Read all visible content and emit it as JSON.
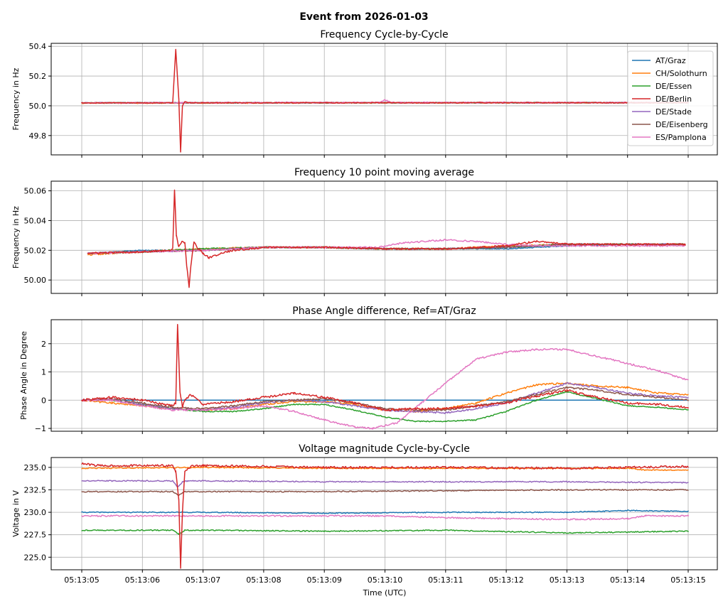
{
  "figure": {
    "title": "Event from 2026-01-03",
    "xlabel": "Time (UTC)",
    "x_tick_labels": [
      "05:13:05",
      "05:13:06",
      "05:13:07",
      "05:13:08",
      "05:13:09",
      "05:13:10",
      "05:13:11",
      "05:13:12",
      "05:13:13",
      "05:13:14",
      "05:13:15"
    ]
  },
  "legend": {
    "placement": "upper-right of first panel",
    "entries": [
      {
        "name": "AT/Graz",
        "color": "#1f77b4"
      },
      {
        "name": "CH/Solothurn",
        "color": "#ff7f0e"
      },
      {
        "name": "DE/Essen",
        "color": "#2ca02c"
      },
      {
        "name": "DE/Berlin",
        "color": "#d62728"
      },
      {
        "name": "DE/Stade",
        "color": "#9467bd"
      },
      {
        "name": "DE/Eisenberg",
        "color": "#8c564b"
      },
      {
        "name": "ES/Pamplona",
        "color": "#e377c2"
      }
    ]
  },
  "chart_data": [
    {
      "type": "line",
      "title": "Frequency Cycle-by-Cycle",
      "xlabel": "",
      "ylabel": "Frequency in Hz",
      "xlim": [
        0,
        10
      ],
      "x_unit": "seconds after 05:13:05",
      "ylim": [
        49.67,
        50.42
      ],
      "y_ticks": [
        49.8,
        50.0,
        50.2,
        50.4
      ],
      "y_tick_labels": [
        "49.8",
        "50.0",
        "50.2",
        "50.4"
      ],
      "grid": true,
      "series": [
        {
          "name": "AT/Graz",
          "color": "#1f77b4",
          "x": [
            0,
            10
          ],
          "y": [
            50.02,
            50.021
          ],
          "noise": 0.002,
          "seed": 11
        },
        {
          "name": "CH/Solothurn",
          "color": "#ff7f0e",
          "x": [
            0,
            10
          ],
          "y": [
            50.018,
            50.021
          ],
          "noise": 0.003,
          "seed": 12
        },
        {
          "name": "DE/Essen",
          "color": "#2ca02c",
          "x": [
            0,
            10
          ],
          "y": [
            50.02,
            50.021
          ],
          "noise": 0.003,
          "seed": 13
        },
        {
          "name": "DE/Stade",
          "color": "#9467bd",
          "x": [
            0,
            10
          ],
          "y": [
            50.02,
            50.021
          ],
          "noise": 0.003,
          "seed": 15
        },
        {
          "name": "DE/Eisenberg",
          "color": "#8c564b",
          "x": [
            0,
            10
          ],
          "y": [
            50.02,
            50.021
          ],
          "noise": 0.003,
          "seed": 16
        },
        {
          "name": "ES/Pamplona",
          "color": "#e377c2",
          "x": [
            0,
            4.9,
            5.0,
            5.1,
            10
          ],
          "y": [
            50.02,
            50.022,
            50.04,
            50.022,
            50.022
          ],
          "noise": 0.004,
          "seed": 17
        },
        {
          "name": "DE/Berlin",
          "color": "#d62728",
          "x": [
            0,
            1.5,
            1.55,
            1.6,
            1.63,
            1.66,
            1.7,
            1.75,
            2.0,
            10
          ],
          "y": [
            50.02,
            50.02,
            50.38,
            50.05,
            49.69,
            50.0,
            50.03,
            50.02,
            50.02,
            50.021
          ],
          "noise": 0.003,
          "seed": 14
        }
      ]
    },
    {
      "type": "line",
      "title": "Frequency 10 point moving average",
      "xlabel": "",
      "ylabel": "Frequency in Hz",
      "xlim": [
        0,
        10
      ],
      "x_unit": "seconds after 05:13:05",
      "ylim": [
        49.991,
        50.0665
      ],
      "y_ticks": [
        50.0,
        50.02,
        50.04,
        50.06
      ],
      "y_tick_labels": [
        "50.00",
        "50.02",
        "50.04",
        "50.06"
      ],
      "grid": true,
      "series": [
        {
          "name": "AT/Graz",
          "color": "#1f77b4",
          "x": [
            0.1,
            1.0,
            2.0,
            3.0,
            4.0,
            5.0,
            6.0,
            7.0,
            8.0,
            9.0,
            9.95
          ],
          "y": [
            50.018,
            50.02,
            50.02,
            50.022,
            50.022,
            50.021,
            50.021,
            50.021,
            50.023,
            50.024,
            50.024
          ],
          "noise": 0.0003,
          "seed": 21
        },
        {
          "name": "CH/Solothurn",
          "color": "#ff7f0e",
          "x": [
            0.1,
            1.0,
            2.0,
            3.0,
            4.0,
            5.0,
            6.0,
            7.0,
            8.0,
            9.0,
            9.95
          ],
          "y": [
            50.017,
            50.019,
            50.021,
            50.022,
            50.022,
            50.021,
            50.021,
            50.023,
            50.024,
            50.024,
            50.024
          ],
          "noise": 0.0005,
          "seed": 22
        },
        {
          "name": "DE/Essen",
          "color": "#2ca02c",
          "x": [
            0.1,
            1.0,
            2.0,
            3.0,
            4.0,
            5.0,
            6.0,
            7.0,
            8.0,
            9.0,
            9.95
          ],
          "y": [
            50.018,
            50.019,
            50.021,
            50.022,
            50.022,
            50.021,
            50.021,
            50.022,
            50.024,
            50.024,
            50.024
          ],
          "noise": 0.0005,
          "seed": 23
        },
        {
          "name": "DE/Stade",
          "color": "#9467bd",
          "x": [
            0.1,
            1.0,
            2.0,
            3.0,
            4.0,
            5.0,
            6.0,
            7.0,
            8.0,
            9.0,
            9.95
          ],
          "y": [
            50.018,
            50.019,
            50.02,
            50.022,
            50.022,
            50.021,
            50.021,
            50.022,
            50.024,
            50.024,
            50.024
          ],
          "noise": 0.0005,
          "seed": 25
        },
        {
          "name": "DE/Eisenberg",
          "color": "#8c564b",
          "x": [
            0.1,
            1.0,
            2.0,
            3.0,
            4.0,
            5.0,
            6.0,
            7.0,
            8.0,
            9.0,
            9.95
          ],
          "y": [
            50.018,
            50.019,
            50.02,
            50.022,
            50.022,
            50.021,
            50.021,
            50.022,
            50.024,
            50.024,
            50.024
          ],
          "noise": 0.0005,
          "seed": 26
        },
        {
          "name": "ES/Pamplona",
          "color": "#e377c2",
          "x": [
            0.1,
            1.0,
            2.0,
            3.0,
            4.0,
            4.9,
            5.3,
            6.0,
            6.5,
            7.0,
            7.5,
            8.0,
            9.0,
            9.95
          ],
          "y": [
            50.018,
            50.019,
            50.02,
            50.022,
            50.022,
            50.022,
            50.025,
            50.027,
            50.026,
            50.024,
            50.023,
            50.023,
            50.023,
            50.023
          ],
          "noise": 0.0005,
          "seed": 27
        },
        {
          "name": "DE/Berlin",
          "color": "#d62728",
          "x": [
            0.1,
            1.0,
            1.45,
            1.5,
            1.53,
            1.56,
            1.6,
            1.65,
            1.7,
            1.73,
            1.77,
            1.8,
            1.85,
            1.9,
            2.0,
            2.1,
            2.3,
            2.5,
            2.8,
            3.0,
            4.0,
            5.0,
            6.0,
            7.0,
            7.5,
            8.0,
            9.0,
            9.95
          ],
          "y": [
            50.018,
            50.019,
            50.02,
            50.021,
            50.061,
            50.03,
            50.022,
            50.026,
            50.025,
            50.01,
            49.995,
            50.01,
            50.026,
            50.022,
            50.018,
            50.015,
            50.018,
            50.02,
            50.021,
            50.022,
            50.022,
            50.021,
            50.021,
            50.023,
            50.026,
            50.024,
            50.024,
            50.024
          ],
          "noise": 0.0006,
          "seed": 24
        }
      ]
    },
    {
      "type": "line",
      "title": "Phase Angle difference, Ref=AT/Graz",
      "xlabel": "",
      "ylabel": "Phase Angle in Degree",
      "xlim": [
        0,
        10
      ],
      "x_unit": "seconds after 05:13:05",
      "ylim": [
        -1.1,
        2.85
      ],
      "y_ticks": [
        -1,
        0,
        1,
        2
      ],
      "y_tick_labels": [
        "−1",
        "0",
        "1",
        "2"
      ],
      "grid": true,
      "series": [
        {
          "name": "AT/Graz",
          "color": "#1f77b4",
          "x": [
            0,
            10
          ],
          "y": [
            0,
            0
          ],
          "noise": 0,
          "seed": 31
        },
        {
          "name": "CH/Solothurn",
          "color": "#ff7f0e",
          "x": [
            0,
            0.5,
            1,
            1.5,
            2,
            2.5,
            3,
            3.5,
            4,
            4.5,
            5,
            5.5,
            6,
            6.5,
            7,
            7.5,
            8,
            8.5,
            9,
            9.5,
            10
          ],
          "y": [
            0,
            -0.1,
            -0.2,
            -0.3,
            -0.35,
            -0.3,
            -0.15,
            -0.05,
            -0.05,
            -0.15,
            -0.35,
            -0.4,
            -0.3,
            -0.1,
            0.25,
            0.55,
            0.6,
            0.5,
            0.45,
            0.25,
            0.2
          ],
          "noise": 0.03,
          "seed": 32
        },
        {
          "name": "DE/Essen",
          "color": "#2ca02c",
          "x": [
            0,
            0.5,
            1,
            1.5,
            2,
            2.5,
            3,
            3.5,
            4,
            4.5,
            5,
            5.5,
            6,
            6.5,
            7,
            7.5,
            8,
            8.5,
            9,
            9.5,
            10
          ],
          "y": [
            0,
            0,
            -0.15,
            -0.3,
            -0.4,
            -0.4,
            -0.3,
            -0.15,
            -0.15,
            -0.35,
            -0.6,
            -0.75,
            -0.75,
            -0.7,
            -0.4,
            0,
            0.3,
            0.05,
            -0.2,
            -0.25,
            -0.35
          ],
          "noise": 0.02,
          "seed": 33
        },
        {
          "name": "DE/Stade",
          "color": "#9467bd",
          "x": [
            0,
            0.5,
            1,
            1.5,
            2,
            2.5,
            3,
            3.5,
            4,
            4.5,
            5,
            5.5,
            6,
            6.5,
            7,
            7.5,
            8,
            8.5,
            9,
            9.5,
            10
          ],
          "y": [
            0,
            0,
            -0.15,
            -0.3,
            -0.35,
            -0.25,
            -0.1,
            0,
            -0.05,
            -0.2,
            -0.35,
            -0.4,
            -0.45,
            -0.3,
            -0.1,
            0.25,
            0.6,
            0.45,
            0.25,
            0.15,
            0.1
          ],
          "noise": 0.03,
          "seed": 35
        },
        {
          "name": "DE/Eisenberg",
          "color": "#8c564b",
          "x": [
            0,
            0.5,
            1,
            1.5,
            2,
            2.5,
            3,
            3.5,
            4,
            4.5,
            5,
            5.5,
            6,
            6.5,
            7,
            7.5,
            8,
            8.5,
            9,
            9.5,
            10
          ],
          "y": [
            0,
            0.05,
            -0.1,
            -0.25,
            -0.3,
            -0.2,
            -0.05,
            0,
            0.05,
            -0.1,
            -0.3,
            -0.35,
            -0.35,
            -0.2,
            -0.05,
            0.2,
            0.45,
            0.35,
            0.2,
            0.1,
            0.0
          ],
          "noise": 0.03,
          "seed": 36
        },
        {
          "name": "ES/Pamplona",
          "color": "#e377c2",
          "x": [
            0,
            0.5,
            1,
            1.5,
            2,
            2.5,
            3,
            3.5,
            4,
            4.5,
            4.8,
            5.2,
            5.6,
            6,
            6.5,
            7,
            7.5,
            8,
            8.5,
            9,
            9.5,
            10
          ],
          "y": [
            0,
            0,
            -0.2,
            -0.35,
            -0.35,
            -0.3,
            -0.2,
            -0.4,
            -0.7,
            -0.95,
            -1.0,
            -0.8,
            -0.1,
            0.6,
            1.45,
            1.7,
            1.8,
            1.8,
            1.55,
            1.3,
            1.05,
            0.7
          ],
          "noise": 0.03,
          "seed": 37
        },
        {
          "name": "DE/Berlin",
          "color": "#d62728",
          "x": [
            0,
            0.5,
            1,
            1.5,
            1.55,
            1.58,
            1.62,
            1.66,
            1.7,
            1.8,
            2,
            2.5,
            3,
            3.5,
            4,
            4.5,
            5,
            5.5,
            6,
            6.5,
            7,
            7.5,
            8,
            8.5,
            9,
            9.5,
            10
          ],
          "y": [
            0,
            0.1,
            0,
            -0.2,
            -0.1,
            2.7,
            0.3,
            -0.25,
            0,
            0.2,
            -0.15,
            -0.05,
            0.1,
            0.25,
            0.1,
            -0.1,
            -0.35,
            -0.3,
            -0.3,
            -0.2,
            -0.1,
            0.15,
            0.35,
            0.1,
            -0.1,
            -0.15,
            -0.25
          ],
          "noise": 0.04,
          "seed": 34
        }
      ]
    },
    {
      "type": "line",
      "title": "Voltage magnitude Cycle-by-Cycle",
      "xlabel": "Time (UTC)",
      "ylabel": "Voltage in V",
      "xlim": [
        0,
        10
      ],
      "x_unit": "seconds after 05:13:05",
      "ylim": [
        223.6,
        236.1
      ],
      "y_ticks": [
        225.0,
        227.5,
        230.0,
        232.5,
        235.0
      ],
      "y_tick_labels": [
        "225.0",
        "227.5",
        "230.0",
        "232.5",
        "235.0"
      ],
      "grid": true,
      "series": [
        {
          "name": "AT/Graz",
          "color": "#1f77b4",
          "x": [
            0,
            2,
            4,
            6,
            8,
            9,
            10
          ],
          "y": [
            230.0,
            230.0,
            229.9,
            230.0,
            230.0,
            230.2,
            230.1
          ],
          "noise": 0.05,
          "seed": 41
        },
        {
          "name": "CH/Solothurn",
          "color": "#ff7f0e",
          "x": [
            0,
            2,
            4,
            6,
            8,
            9,
            9.3,
            10
          ],
          "y": [
            234.9,
            235.0,
            234.9,
            234.9,
            234.9,
            234.9,
            234.7,
            234.7
          ],
          "noise": 0.06,
          "seed": 42
        },
        {
          "name": "DE/Essen",
          "color": "#2ca02c",
          "x": [
            0,
            1.5,
            1.6,
            1.7,
            2,
            4,
            6,
            8,
            10
          ],
          "y": [
            228.0,
            228.0,
            227.6,
            228.0,
            228.0,
            227.9,
            228.0,
            227.7,
            227.9
          ],
          "noise": 0.06,
          "seed": 43
        },
        {
          "name": "DE/Stade",
          "color": "#9467bd",
          "x": [
            0,
            1.5,
            1.58,
            1.66,
            1.75,
            2,
            4,
            6,
            8,
            10
          ],
          "y": [
            233.5,
            233.5,
            232.8,
            233.4,
            233.5,
            233.5,
            233.4,
            233.4,
            233.4,
            233.3
          ],
          "noise": 0.06,
          "seed": 45
        },
        {
          "name": "DE/Eisenberg",
          "color": "#8c564b",
          "x": [
            0,
            1.5,
            1.6,
            1.7,
            2,
            4,
            6,
            8,
            10
          ],
          "y": [
            232.3,
            232.3,
            231.9,
            232.3,
            232.3,
            232.3,
            232.4,
            232.5,
            232.5
          ],
          "noise": 0.06,
          "seed": 46
        },
        {
          "name": "ES/Pamplona",
          "color": "#e377c2",
          "x": [
            0,
            2,
            4,
            5,
            6,
            7,
            8,
            9,
            9.3,
            10
          ],
          "y": [
            229.6,
            229.6,
            229.6,
            229.6,
            229.4,
            229.3,
            229.2,
            229.3,
            229.6,
            229.6
          ],
          "noise": 0.08,
          "seed": 47
        },
        {
          "name": "DE/Berlin",
          "color": "#d62728",
          "x": [
            0,
            0.3,
            1.5,
            1.55,
            1.6,
            1.63,
            1.66,
            1.7,
            1.8,
            2,
            4,
            6,
            8,
            10
          ],
          "y": [
            235.4,
            235.2,
            235.2,
            234.5,
            231.5,
            223.8,
            230.0,
            234.5,
            235.1,
            235.2,
            235.0,
            235.0,
            234.9,
            235.1
          ],
          "noise": 0.12,
          "seed": 44
        }
      ]
    }
  ]
}
